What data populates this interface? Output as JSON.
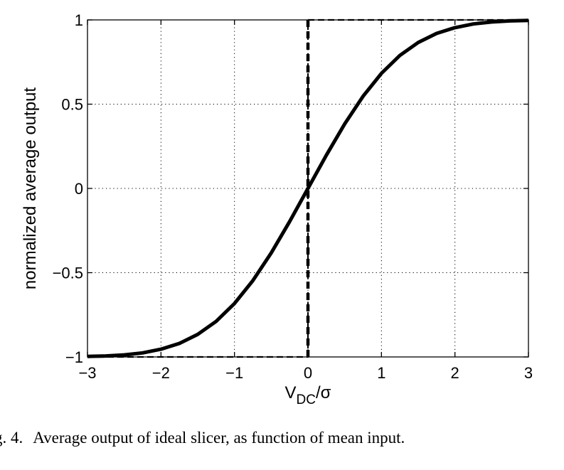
{
  "chart_data": {
    "type": "line",
    "xlabel": "V",
    "xlabel_sub": "DC",
    "xlabel_rest": "/σ",
    "ylabel": "normalized average output",
    "xlim": [
      -3,
      3
    ],
    "ylim": [
      -1,
      1
    ],
    "xticks": [
      -3,
      -2,
      -1,
      0,
      1,
      2,
      3
    ],
    "xtick_labels": [
      "−3",
      "−2",
      "−1",
      "0",
      "1",
      "2",
      "3"
    ],
    "yticks": [
      -1,
      -0.5,
      0,
      0.5,
      1
    ],
    "ytick_labels": [
      "−1",
      "−0.5",
      "0",
      "0.5",
      "1"
    ],
    "grid": true,
    "series": [
      {
        "style": "solid",
        "color": "#000000",
        "x": [
          -3,
          -2.75,
          -2.5,
          -2.25,
          -2,
          -1.75,
          -1.5,
          -1.25,
          -1,
          -0.75,
          -0.5,
          -0.25,
          0,
          0.25,
          0.5,
          0.75,
          1,
          1.25,
          1.5,
          1.75,
          2,
          2.25,
          2.5,
          2.75,
          3
        ],
        "y": [
          -0.997,
          -0.994,
          -0.988,
          -0.976,
          -0.954,
          -0.92,
          -0.866,
          -0.789,
          -0.683,
          -0.547,
          -0.383,
          -0.197,
          0,
          0.197,
          0.383,
          0.547,
          0.683,
          0.789,
          0.866,
          0.92,
          0.954,
          0.976,
          0.988,
          0.994,
          0.997
        ]
      },
      {
        "style": "dashed",
        "color": "#000000",
        "x": [
          -3,
          0,
          0,
          3
        ],
        "y": [
          -1,
          -1,
          1,
          1
        ]
      }
    ]
  },
  "caption": {
    "prefix": "g. 4.",
    "text": "Average output of ideal slicer, as function of mean input."
  }
}
